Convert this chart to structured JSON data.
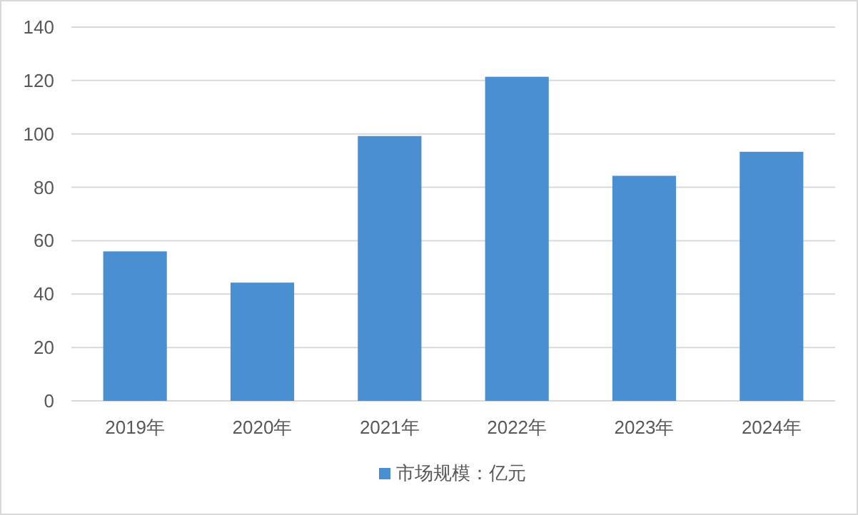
{
  "chart_data": {
    "type": "bar",
    "categories": [
      "2019年",
      "2020年",
      "2021年",
      "2022年",
      "2023年",
      "2024年"
    ],
    "series": [
      {
        "name": "市场规模：亿元",
        "color": "#4a8fd2",
        "values": [
          56,
          44.3,
          99.2,
          121.4,
          84.3,
          93.3
        ]
      }
    ],
    "ylim": [
      0,
      140
    ],
    "yticks": [
      0,
      20,
      40,
      60,
      80,
      100,
      120,
      140
    ],
    "grid": "y",
    "legend": "bottom"
  }
}
